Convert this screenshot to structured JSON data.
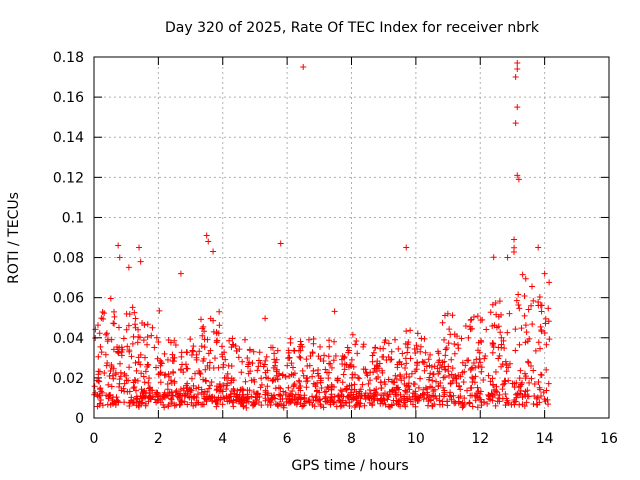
{
  "chart_data": {
    "type": "scatter",
    "title": "Day 320 of 2025, Rate Of TEC Index for receiver nbrk",
    "xlabel": "GPS time / hours",
    "ylabel": "ROTI / TECUs",
    "xlim": [
      0,
      16
    ],
    "ylim": [
      0,
      0.18
    ],
    "xticks": [
      0,
      2,
      4,
      6,
      8,
      10,
      12,
      14,
      16
    ],
    "yticks": [
      0,
      0.02,
      0.04,
      0.06,
      0.08,
      0.1,
      0.12,
      0.14,
      0.16,
      0.18
    ],
    "xtick_labels": [
      "0",
      "2",
      "4",
      "6",
      "8",
      "10",
      "12",
      "14",
      "16"
    ],
    "ytick_labels": [
      "0",
      "0.02",
      "0.04",
      "0.06",
      "0.08",
      "0.1",
      "0.12",
      "0.14",
      "0.16",
      "0.18"
    ],
    "grid": true,
    "marker": "+",
    "series": [
      {
        "name": "nbrk",
        "color": "#ff0000",
        "x_range": [
          0,
          14.15
        ],
        "typical_range": [
          0.005,
          0.035
        ],
        "notable_points": [
          {
            "x": 0.75,
            "y": 0.086
          },
          {
            "x": 0.8,
            "y": 0.08
          },
          {
            "x": 1.4,
            "y": 0.085
          },
          {
            "x": 1.45,
            "y": 0.078
          },
          {
            "x": 2.7,
            "y": 0.072
          },
          {
            "x": 3.5,
            "y": 0.091
          },
          {
            "x": 3.55,
            "y": 0.088
          },
          {
            "x": 3.7,
            "y": 0.083
          },
          {
            "x": 5.8,
            "y": 0.087
          },
          {
            "x": 6.5,
            "y": 0.175
          },
          {
            "x": 9.7,
            "y": 0.085
          },
          {
            "x": 12.85,
            "y": 0.08
          },
          {
            "x": 13.05,
            "y": 0.089
          },
          {
            "x": 13.1,
            "y": 0.147
          },
          {
            "x": 13.15,
            "y": 0.155
          },
          {
            "x": 13.1,
            "y": 0.17
          },
          {
            "x": 13.15,
            "y": 0.174
          },
          {
            "x": 13.15,
            "y": 0.177
          },
          {
            "x": 13.15,
            "y": 0.121
          },
          {
            "x": 13.2,
            "y": 0.119
          },
          {
            "x": 13.8,
            "y": 0.085
          },
          {
            "x": 14.0,
            "y": 0.072
          }
        ]
      }
    ]
  }
}
